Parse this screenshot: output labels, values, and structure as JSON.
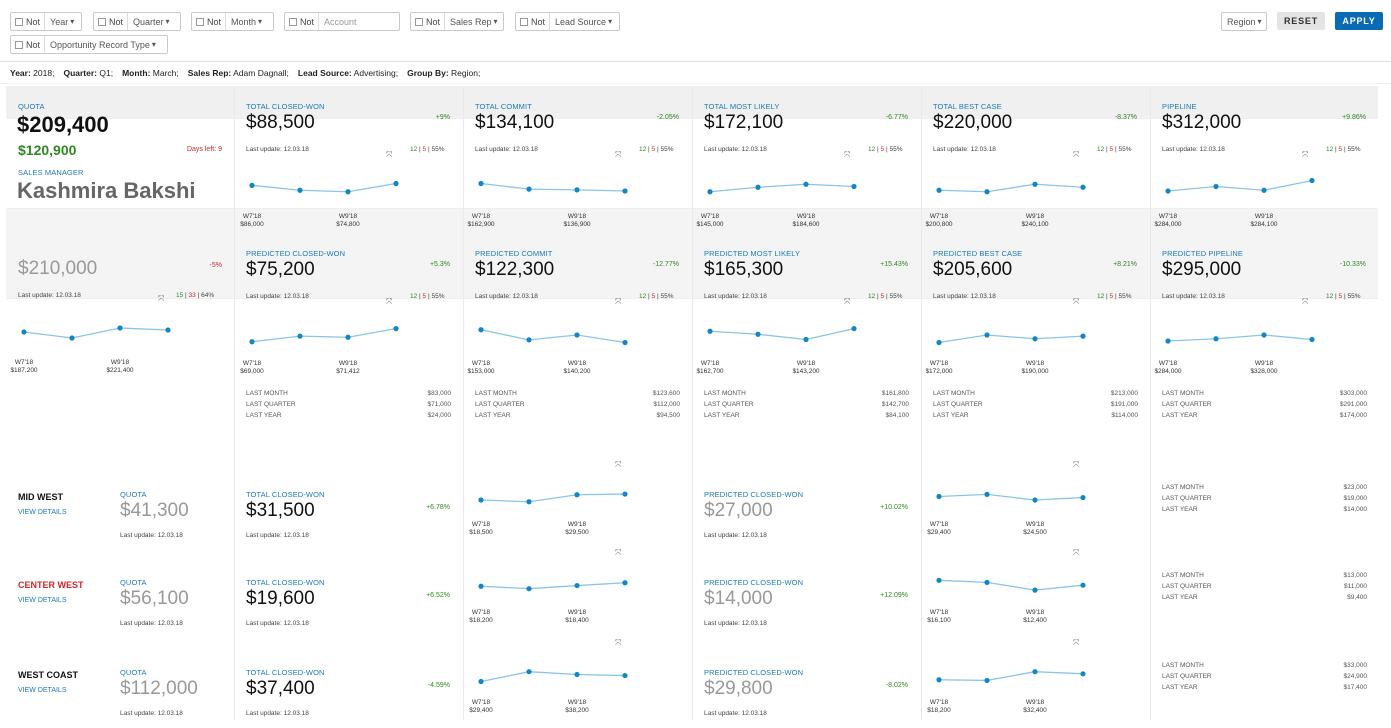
{
  "filters": {
    "not_label": "Not",
    "items": [
      {
        "name": "year-filter",
        "label": "Year",
        "dropdown": true
      },
      {
        "name": "quarter-filter",
        "label": "Quarter",
        "dropdown": true
      },
      {
        "name": "month-filter",
        "label": "Month",
        "dropdown": true
      },
      {
        "name": "account-filter",
        "label": "Account",
        "dropdown": false
      },
      {
        "name": "sales-rep-filter",
        "label": "Sales Rep",
        "dropdown": true
      },
      {
        "name": "lead-source-filter",
        "label": "Lead Source",
        "dropdown": true
      },
      {
        "name": "opportunity-record-type-filter",
        "label": "Opportunity Record Type",
        "dropdown": true
      }
    ],
    "region_label": "Region",
    "reset_label": "RESET",
    "apply_label": "APPLY"
  },
  "summary": [
    {
      "k": "Year:",
      "v": "2018;"
    },
    {
      "k": "Quarter:",
      "v": "Q1;"
    },
    {
      "k": "Month:",
      "v": "March;"
    },
    {
      "k": "Sales Rep:",
      "v": "Adam Dagnall;"
    },
    {
      "k": "Lead Source:",
      "v": "Advertising;"
    },
    {
      "k": "Group By:",
      "v": "Region;"
    }
  ],
  "quota_panel": {
    "title": "QUOTA",
    "value": "$209,400",
    "achieved": "$120,900",
    "days_left": "Days left: 9",
    "role": "SALES MANAGER",
    "person": "Kashmira Bakshi",
    "target_value": "$210,000",
    "target_pct": "-5%",
    "last_update": "Last update: 12.03.18",
    "counts": [
      "15",
      "33",
      "64%"
    ],
    "spark": {
      "values": [
        50,
        35,
        60,
        55
      ],
      "labels": [
        {
          "period": "W7'18",
          "value": "$187,200"
        },
        {
          "period": "W9'18",
          "value": "$221,400"
        }
      ]
    }
  },
  "top_metrics": [
    {
      "title": "TOTAL CLOSED-WON",
      "value": "$88,500",
      "pct": "+9%",
      "last_update": "Last update: 12.03.18",
      "counts": [
        "12",
        "5",
        "55%"
      ],
      "spark": {
        "values": [
          55,
          42,
          38,
          60
        ],
        "labels": [
          {
            "period": "W7'18",
            "value": "$86,000"
          },
          {
            "period": "W9'18",
            "value": "$74,800"
          }
        ]
      }
    },
    {
      "title": "TOTAL COMMIT",
      "value": "$134,100",
      "pct": "-2.05%",
      "last_update": "Last update: 12.03.18",
      "counts": [
        "12",
        "5",
        "55%"
      ],
      "spark": {
        "values": [
          60,
          45,
          43,
          40
        ],
        "labels": [
          {
            "period": "W7'18",
            "value": "$162,900"
          },
          {
            "period": "W9'18",
            "value": "$136,900"
          }
        ]
      }
    },
    {
      "title": "TOTAL MOST LIKELY",
      "value": "$172,100",
      "pct": "-6.77%",
      "last_update": "Last update: 12.03.18",
      "counts": [
        "12",
        "5",
        "55%"
      ],
      "spark": {
        "values": [
          38,
          50,
          58,
          52
        ],
        "labels": [
          {
            "period": "W7'18",
            "value": "$145,000"
          },
          {
            "period": "W9'18",
            "value": "$184,600"
          }
        ]
      }
    },
    {
      "title": "TOTAL BEST CASE",
      "value": "$220,000",
      "pct": "-8.37%",
      "last_update": "Last update: 12.03.18",
      "counts": [
        "12",
        "5",
        "55%"
      ],
      "spark": {
        "values": [
          42,
          38,
          58,
          50
        ],
        "labels": [
          {
            "period": "W7'18",
            "value": "$200,800"
          },
          {
            "period": "W9'18",
            "value": "$240,100"
          }
        ]
      }
    },
    {
      "title": "PIPELINE",
      "value": "$312,000",
      "pct": "+9.86%",
      "last_update": "Last update: 12.03.18",
      "counts": [
        "12",
        "5",
        "55%"
      ],
      "spark": {
        "values": [
          40,
          52,
          42,
          68
        ],
        "labels": [
          {
            "period": "W7'18",
            "value": "$284,000"
          },
          {
            "period": "W9'18",
            "value": "$284,100"
          }
        ]
      }
    }
  ],
  "predicted_metrics": [
    {
      "title": "PREDICTED CLOSED-WON",
      "value": "$75,200",
      "pct": "+5.3%",
      "last_update": "Last update: 12.03.18",
      "counts": [
        "12",
        "5",
        "55%"
      ],
      "spark": {
        "values": [
          30,
          45,
          42,
          65
        ],
        "labels": [
          {
            "period": "W7'18",
            "value": "$69,000"
          },
          {
            "period": "W9'18",
            "value": "$71,412"
          }
        ]
      },
      "history": [
        {
          "k": "LAST MONTH",
          "v": "$83,000"
        },
        {
          "k": "LAST QUARTER",
          "v": "$71,000"
        },
        {
          "k": "LAST YEAR",
          "v": "$24,000"
        }
      ]
    },
    {
      "title": "PREDICTED COMMIT",
      "value": "$122,300",
      "pct": "-12.77%",
      "last_update": "Last update: 12.03.18",
      "counts": [
        "12",
        "5",
        "55%"
      ],
      "spark": {
        "values": [
          62,
          35,
          48,
          28
        ],
        "labels": [
          {
            "period": "W7'18",
            "value": "$153,000"
          },
          {
            "period": "W9'18",
            "value": "$140,200"
          }
        ]
      },
      "history": [
        {
          "k": "LAST MONTH",
          "v": "$123,600"
        },
        {
          "k": "LAST QUARTER",
          "v": "$112,000"
        },
        {
          "k": "LAST YEAR",
          "v": "$94,500"
        }
      ]
    },
    {
      "title": "PREDICTED MOST LIKELY",
      "value": "$165,300",
      "pct": "+15.43%",
      "last_update": "Last update: 12.03.18",
      "counts": [
        "12",
        "5",
        "55%"
      ],
      "spark": {
        "values": [
          58,
          50,
          36,
          65
        ],
        "labels": [
          {
            "period": "W7'18",
            "value": "$162,700"
          },
          {
            "period": "W9'18",
            "value": "$143,200"
          }
        ]
      },
      "history": [
        {
          "k": "LAST MONTH",
          "v": "$161,800"
        },
        {
          "k": "LAST QUARTER",
          "v": "$142,700"
        },
        {
          "k": "LAST YEAR",
          "v": "$84,100"
        }
      ]
    },
    {
      "title": "PREDICTED BEST CASE",
      "value": "$205,600",
      "pct": "+8.21%",
      "last_update": "Last update: 12.03.18",
      "counts": [
        "12",
        "5",
        "55%"
      ],
      "spark": {
        "values": [
          28,
          48,
          38,
          45
        ],
        "labels": [
          {
            "period": "W7'18",
            "value": "$172,000"
          },
          {
            "period": "W9'18",
            "value": "$190,000"
          }
        ]
      },
      "history": [
        {
          "k": "LAST MONTH",
          "v": "$213,000"
        },
        {
          "k": "LAST QUARTER",
          "v": "$191,000"
        },
        {
          "k": "LAST YEAR",
          "v": "$114,000"
        }
      ]
    },
    {
      "title": "PREDICTED PIPELINE",
      "value": "$295,000",
      "pct": "-10.33%",
      "last_update": "Last update: 12.03.18",
      "counts": [
        "12",
        "5",
        "55%"
      ],
      "spark": {
        "values": [
          32,
          38,
          48,
          36
        ],
        "labels": [
          {
            "period": "W7'18",
            "value": "$284,000"
          },
          {
            "period": "W9'18",
            "value": "$328,000"
          }
        ]
      },
      "history": [
        {
          "k": "LAST MONTH",
          "v": "$303,000"
        },
        {
          "k": "LAST QUARTER",
          "v": "$291,000"
        },
        {
          "k": "LAST YEAR",
          "v": "$174,000"
        }
      ]
    }
  ],
  "regions": [
    {
      "name": "MID WEST",
      "highlight": false,
      "view_details": "VIEW DETAILS",
      "quota_title": "QUOTA",
      "quota": "$41,300",
      "last_update": "Last update: 12.03.18",
      "won_title": "TOTAL CLOSED-WON",
      "won": "$31,500",
      "won_pct": "+6.78%",
      "won_spark": {
        "values": [
          40,
          35,
          55,
          57
        ],
        "labels": [
          {
            "period": "W7'18",
            "value": "$18,500"
          },
          {
            "period": "W9'18",
            "value": "$29,500"
          }
        ]
      },
      "pred_title": "PREDICTED CLOSED-WON",
      "pred": "$27,000",
      "pred_pct": "+10.02%",
      "pred_spark": {
        "values": [
          50,
          56,
          40,
          47
        ],
        "labels": [
          {
            "period": "W7'18",
            "value": "$29,400"
          },
          {
            "period": "W9'18",
            "value": "$24,500"
          }
        ]
      },
      "history": [
        {
          "k": "LAST MONTH",
          "v": "$23,000"
        },
        {
          "k": "LAST QUARTER",
          "v": "$19,000"
        },
        {
          "k": "LAST YEAR",
          "v": "$14,000"
        }
      ]
    },
    {
      "name": "CENTER WEST",
      "highlight": true,
      "view_details": "VIEW DETAILS",
      "quota_title": "QUOTA",
      "quota": "$56,100",
      "last_update": "Last update: 12.03.18",
      "won_title": "TOTAL CLOSED-WON",
      "won": "$19,600",
      "won_pct": "+6.52%",
      "won_spark": {
        "values": [
          45,
          38,
          47,
          55
        ],
        "labels": [
          {
            "period": "W7'18",
            "value": "$18,200"
          },
          {
            "period": "W9'18",
            "value": "$18,400"
          }
        ]
      },
      "pred_title": "PREDICTED CLOSED-WON",
      "pred": "$14,000",
      "pred_pct": "+12.09%",
      "pred_spark": {
        "values": [
          62,
          56,
          34,
          48
        ],
        "labels": [
          {
            "period": "W7'18",
            "value": "$16,100"
          },
          {
            "period": "W9'18",
            "value": "$12,400"
          }
        ]
      },
      "history": [
        {
          "k": "LAST MONTH",
          "v": "$13,000"
        },
        {
          "k": "LAST QUARTER",
          "v": "$11,000"
        },
        {
          "k": "LAST YEAR",
          "v": "$9,400"
        }
      ]
    },
    {
      "name": "WEST COAST",
      "highlight": false,
      "view_details": "VIEW DETAILS",
      "quota_title": "QUOTA",
      "quota": "$112,000",
      "last_update": "Last update: 12.03.18",
      "won_title": "TOTAL CLOSED-WON",
      "won": "$37,400",
      "won_pct": "-4.59%",
      "won_spark": {
        "values": [
          30,
          58,
          50,
          47
        ],
        "labels": [
          {
            "period": "W7'18",
            "value": "$29,400"
          },
          {
            "period": "W9'18",
            "value": "$38,200"
          }
        ]
      },
      "pred_title": "PREDICTED CLOSED-WON",
      "pred": "$29,800",
      "pred_pct": "-8.02%",
      "pred_spark": {
        "values": [
          35,
          33,
          58,
          52
        ],
        "labels": [
          {
            "period": "W7'18",
            "value": "$18,200"
          },
          {
            "period": "W9'18",
            "value": "$32,400"
          }
        ]
      },
      "history": [
        {
          "k": "LAST MONTH",
          "v": "$33,000"
        },
        {
          "k": "LAST QUARTER",
          "v": "$24,900"
        },
        {
          "k": "LAST YEAR",
          "v": "$17,400"
        }
      ]
    }
  ],
  "colors": {
    "accent": "#1a7bb8",
    "spark_line": "#8cc4e6",
    "spark_dot": "#1586c4",
    "positive": "#2d8a1e",
    "alert": "#d0272d",
    "apply_bg": "#0a6ab3"
  }
}
